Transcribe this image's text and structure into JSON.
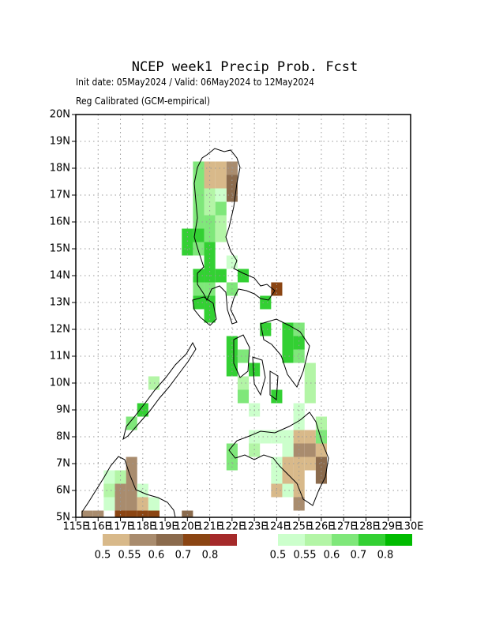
{
  "chart_data": {
    "type": "grid-map",
    "title": "NCEP week1 Precip Prob. Fcst",
    "subtitle": "Init date: 05May2024 / Valid: 06May2024 to 12May2024",
    "note": "Reg Calibrated (GCM-empirical)",
    "xlim": [
      115,
      130
    ],
    "ylim": [
      5,
      20
    ],
    "xticks": [
      {
        "value": 115,
        "label": "115E"
      },
      {
        "value": 116,
        "label": "116E"
      },
      {
        "value": 117,
        "label": "117E"
      },
      {
        "value": 118,
        "label": "118E"
      },
      {
        "value": 119,
        "label": "119E"
      },
      {
        "value": 120,
        "label": "120E"
      },
      {
        "value": 121,
        "label": "121E"
      },
      {
        "value": 122,
        "label": "122E"
      },
      {
        "value": 123,
        "label": "123E"
      },
      {
        "value": 124,
        "label": "124E"
      },
      {
        "value": 125,
        "label": "125E"
      },
      {
        "value": 126,
        "label": "126E"
      },
      {
        "value": 127,
        "label": "127E"
      },
      {
        "value": 128,
        "label": "128E"
      },
      {
        "value": 129,
        "label": "129E"
      },
      {
        "value": 130,
        "label": "130E"
      }
    ],
    "yticks": [
      {
        "value": 5,
        "label": "5N"
      },
      {
        "value": 6,
        "label": "6N"
      },
      {
        "value": 7,
        "label": "7N"
      },
      {
        "value": 8,
        "label": "8N"
      },
      {
        "value": 9,
        "label": "9N"
      },
      {
        "value": 10,
        "label": "10N"
      },
      {
        "value": 11,
        "label": "11N"
      },
      {
        "value": 12,
        "label": "12N"
      },
      {
        "value": 13,
        "label": "13N"
      },
      {
        "value": 14,
        "label": "14N"
      },
      {
        "value": 15,
        "label": "15N"
      },
      {
        "value": 16,
        "label": "16N"
      },
      {
        "value": 17,
        "label": "17N"
      },
      {
        "value": 18,
        "label": "18N"
      },
      {
        "value": 19,
        "label": "19N"
      },
      {
        "value": 20,
        "label": "20N"
      }
    ],
    "grid": true,
    "cell_size": 0.5,
    "dry_scale": {
      "levels": [
        0.5,
        0.55,
        0.6,
        0.7,
        0.8
      ],
      "colors": [
        "#d8b98a",
        "#a98c6e",
        "#8b6b4d",
        "#8b4513",
        "#a52a2a"
      ]
    },
    "wet_scale": {
      "levels": [
        0.5,
        0.55,
        0.6,
        0.7,
        0.8
      ],
      "colors": [
        "#ccffcc",
        "#b3f5a6",
        "#7fe77a",
        "#33d033",
        "#00bb00"
      ]
    },
    "dry_cells": [
      [
        121.0,
        18.0,
        0.5
      ],
      [
        121.5,
        18.0,
        0.5
      ],
      [
        122.0,
        18.0,
        0.55
      ],
      [
        121.0,
        17.5,
        0.5
      ],
      [
        121.5,
        17.5,
        0.5
      ],
      [
        122.0,
        17.5,
        0.6
      ],
      [
        122.0,
        17.0,
        0.6
      ],
      [
        124.0,
        13.5,
        0.7
      ],
      [
        125.0,
        8.0,
        0.5
      ],
      [
        125.5,
        8.0,
        0.5
      ],
      [
        125.0,
        7.5,
        0.55
      ],
      [
        125.5,
        7.5,
        0.55
      ],
      [
        126.0,
        7.5,
        0.5
      ],
      [
        124.5,
        7.0,
        0.5
      ],
      [
        125.0,
        7.0,
        0.5
      ],
      [
        125.5,
        7.0,
        0.5
      ],
      [
        126.0,
        7.0,
        0.6
      ],
      [
        124.5,
        6.5,
        0.5
      ],
      [
        125.0,
        6.5,
        0.5
      ],
      [
        126.0,
        6.5,
        0.6
      ],
      [
        124.0,
        6.0,
        0.5
      ],
      [
        125.0,
        6.0,
        0.5
      ],
      [
        125.0,
        5.5,
        0.55
      ],
      [
        117.5,
        7.0,
        0.55
      ],
      [
        117.5,
        6.5,
        0.55
      ],
      [
        117.0,
        6.0,
        0.55
      ],
      [
        117.5,
        6.0,
        0.55
      ],
      [
        117.0,
        5.5,
        0.55
      ],
      [
        117.5,
        5.5,
        0.55
      ],
      [
        118.0,
        5.5,
        0.5
      ],
      [
        115.5,
        5.0,
        0.55
      ],
      [
        116.0,
        5.0,
        0.55
      ],
      [
        117.0,
        5.0,
        0.7
      ],
      [
        117.5,
        5.0,
        0.7
      ],
      [
        118.0,
        5.0,
        0.7
      ],
      [
        118.5,
        5.0,
        0.7
      ],
      [
        120.0,
        5.0,
        0.6
      ]
    ],
    "wet_cells": [
      [
        120.5,
        18.0,
        0.6
      ],
      [
        120.5,
        17.5,
        0.6
      ],
      [
        120.5,
        17.0,
        0.6
      ],
      [
        121.0,
        17.0,
        0.55
      ],
      [
        121.5,
        17.0,
        0.5
      ],
      [
        120.5,
        16.5,
        0.6
      ],
      [
        121.0,
        16.5,
        0.55
      ],
      [
        121.5,
        16.5,
        0.6
      ],
      [
        120.5,
        16.0,
        0.6
      ],
      [
        121.0,
        16.0,
        0.6
      ],
      [
        121.5,
        16.0,
        0.55
      ],
      [
        120.0,
        15.5,
        0.7
      ],
      [
        120.5,
        15.5,
        0.7
      ],
      [
        121.0,
        15.5,
        0.6
      ],
      [
        121.5,
        15.5,
        0.55
      ],
      [
        120.0,
        15.0,
        0.7
      ],
      [
        120.5,
        15.0,
        0.6
      ],
      [
        121.0,
        15.0,
        0.7
      ],
      [
        121.0,
        14.5,
        0.7
      ],
      [
        122.0,
        14.5,
        0.5
      ],
      [
        120.5,
        14.0,
        0.7
      ],
      [
        121.0,
        14.0,
        0.7
      ],
      [
        121.5,
        14.0,
        0.7
      ],
      [
        122.5,
        14.0,
        0.7
      ],
      [
        120.5,
        13.5,
        0.6
      ],
      [
        121.0,
        13.5,
        0.6
      ],
      [
        122.0,
        13.5,
        0.6
      ],
      [
        120.5,
        13.0,
        0.7
      ],
      [
        121.0,
        13.0,
        0.7
      ],
      [
        123.5,
        13.0,
        0.7
      ],
      [
        121.0,
        12.5,
        0.7
      ],
      [
        123.5,
        12.0,
        0.7
      ],
      [
        124.5,
        12.0,
        0.7
      ],
      [
        125.0,
        12.0,
        0.6
      ],
      [
        122.0,
        11.5,
        0.7
      ],
      [
        124.5,
        11.5,
        0.7
      ],
      [
        125.0,
        11.5,
        0.7
      ],
      [
        122.0,
        11.0,
        0.7
      ],
      [
        122.5,
        11.0,
        0.6
      ],
      [
        124.5,
        11.0,
        0.7
      ],
      [
        125.0,
        11.0,
        0.6
      ],
      [
        122.0,
        10.5,
        0.7
      ],
      [
        123.0,
        10.5,
        0.7
      ],
      [
        125.5,
        10.5,
        0.55
      ],
      [
        122.5,
        10.0,
        0.55
      ],
      [
        125.5,
        10.0,
        0.55
      ],
      [
        118.5,
        10.0,
        0.55
      ],
      [
        122.5,
        9.5,
        0.6
      ],
      [
        124.0,
        9.5,
        0.7
      ],
      [
        125.5,
        9.5,
        0.55
      ],
      [
        123.0,
        9.0,
        0.5
      ],
      [
        125.0,
        9.0,
        0.5
      ],
      [
        118.0,
        9.0,
        0.7
      ],
      [
        117.5,
        8.5,
        0.6
      ],
      [
        125.0,
        8.5,
        0.5
      ],
      [
        126.0,
        8.5,
        0.55
      ],
      [
        123.0,
        8.0,
        0.5
      ],
      [
        123.5,
        8.0,
        0.5
      ],
      [
        124.0,
        8.0,
        0.5
      ],
      [
        124.5,
        8.0,
        0.5
      ],
      [
        126.0,
        8.0,
        0.6
      ],
      [
        122.0,
        7.5,
        0.6
      ],
      [
        123.0,
        7.5,
        0.55
      ],
      [
        124.5,
        7.5,
        0.5
      ],
      [
        122.0,
        7.0,
        0.6
      ],
      [
        124.0,
        7.0,
        0.5
      ],
      [
        124.0,
        6.5,
        0.5
      ],
      [
        124.5,
        6.0,
        0.5
      ],
      [
        116.5,
        6.5,
        0.5
      ],
      [
        117.0,
        6.5,
        0.55
      ],
      [
        116.5,
        6.0,
        0.55
      ],
      [
        118.0,
        6.0,
        0.5
      ],
      [
        116.5,
        5.5,
        0.5
      ],
      [
        118.5,
        5.5,
        0.5
      ]
    ]
  }
}
